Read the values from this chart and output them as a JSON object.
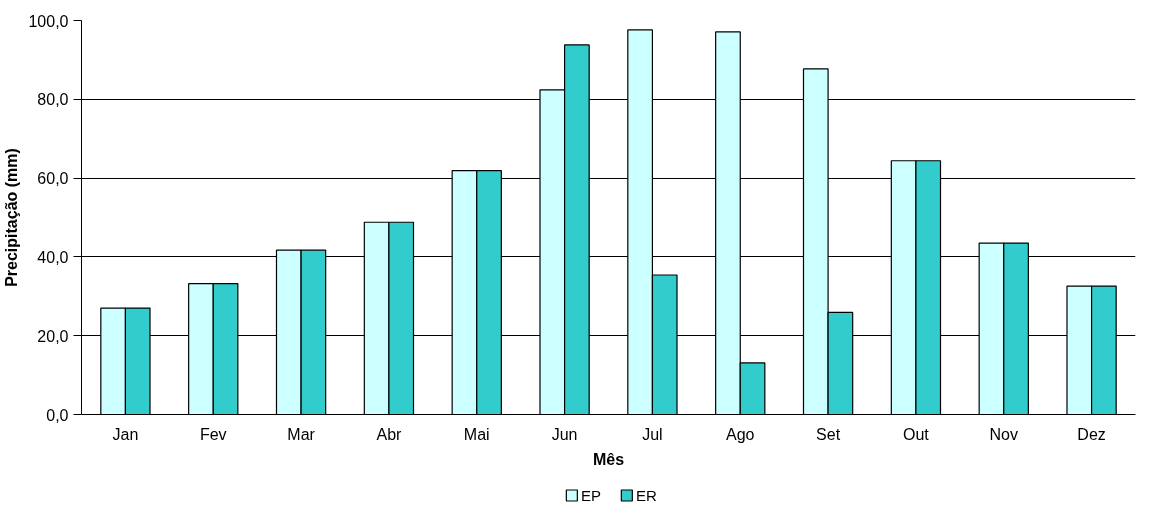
{
  "chart_data": {
    "type": "bar",
    "xlabel": "Mês",
    "ylabel": "Precipitação (mm)",
    "categories": [
      "Jan",
      "Fev",
      "Mar",
      "Abr",
      "Mai",
      "Jun",
      "Jul",
      "Ago",
      "Set",
      "Out",
      "Nov",
      "Dez"
    ],
    "series": [
      {
        "name": "EP",
        "color": "#ccffff",
        "values": [
          27.0,
          33.2,
          41.7,
          48.8,
          61.9,
          82.4,
          97.6,
          97.1,
          87.7,
          64.4,
          43.5,
          32.6
        ]
      },
      {
        "name": "ER",
        "color": "#33cccc",
        "values": [
          27.0,
          33.2,
          41.7,
          48.8,
          61.9,
          93.8,
          35.4,
          13.1,
          25.9,
          64.4,
          43.5,
          32.6
        ]
      }
    ],
    "ylim": [
      0,
      100
    ],
    "yticks": [
      {
        "value": 0,
        "label": "0,0"
      },
      {
        "value": 20,
        "label": "20,0"
      },
      {
        "value": 40,
        "label": "40,0"
      },
      {
        "value": 60,
        "label": "60,0"
      },
      {
        "value": 80,
        "label": "80,0"
      },
      {
        "value": 100,
        "label": "100,0"
      }
    ],
    "grid": "y",
    "legend": "bottom"
  }
}
